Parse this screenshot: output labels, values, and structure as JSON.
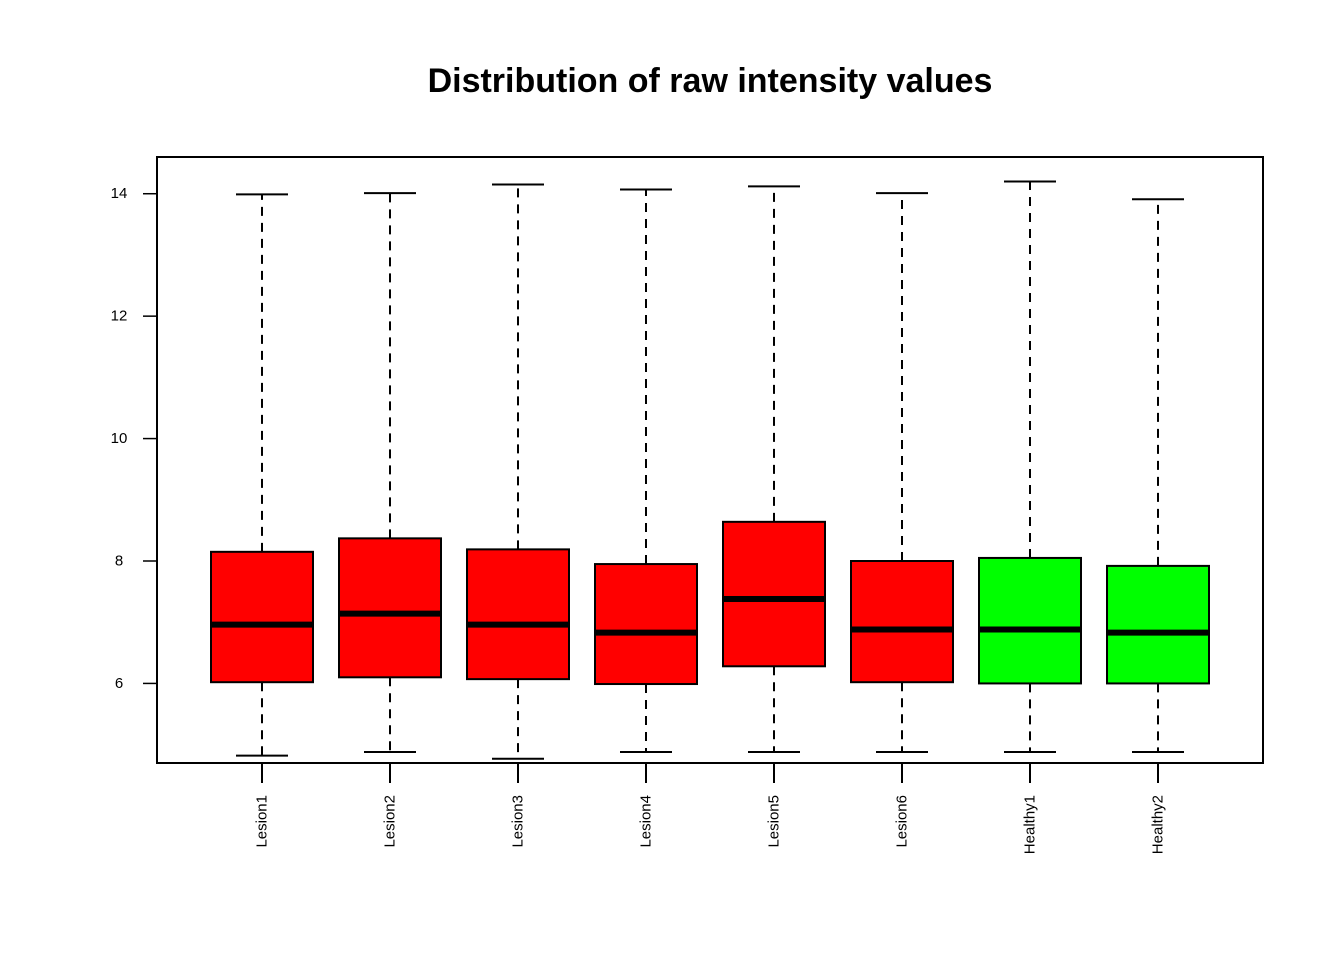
{
  "chart_data": {
    "type": "boxplot",
    "title": "Distribution of raw intensity values",
    "xlabel": "",
    "ylabel": "",
    "ylim": [
      4.7,
      14.6
    ],
    "yticks": [
      6,
      8,
      10,
      12,
      14
    ],
    "ytick_labels": [
      "6",
      "8",
      "10",
      "12",
      "14"
    ],
    "grid": false,
    "categories": [
      "Lesion1",
      "Lesion2",
      "Lesion3",
      "Lesion4",
      "Lesion5",
      "Lesion6",
      "Healthy1",
      "Healthy2"
    ],
    "colors": [
      "#ff0000",
      "#ff0000",
      "#ff0000",
      "#ff0000",
      "#ff0000",
      "#ff0000",
      "#00ff00",
      "#00ff00"
    ],
    "boxes": [
      {
        "min": 4.82,
        "q1": 6.02,
        "median": 6.96,
        "q3": 8.15,
        "max": 13.99
      },
      {
        "min": 4.88,
        "q1": 6.1,
        "median": 7.14,
        "q3": 8.37,
        "max": 14.01
      },
      {
        "min": 4.77,
        "q1": 6.07,
        "median": 6.96,
        "q3": 8.19,
        "max": 14.15
      },
      {
        "min": 4.88,
        "q1": 5.99,
        "median": 6.83,
        "q3": 7.95,
        "max": 14.07
      },
      {
        "min": 4.88,
        "q1": 6.28,
        "median": 7.38,
        "q3": 8.64,
        "max": 14.12
      },
      {
        "min": 4.88,
        "q1": 6.02,
        "median": 6.88,
        "q3": 8.0,
        "max": 14.01
      },
      {
        "min": 4.88,
        "q1": 6.0,
        "median": 6.88,
        "q3": 8.05,
        "max": 14.2
      },
      {
        "min": 4.88,
        "q1": 6.0,
        "median": 6.83,
        "q3": 7.92,
        "max": 13.91
      }
    ]
  }
}
